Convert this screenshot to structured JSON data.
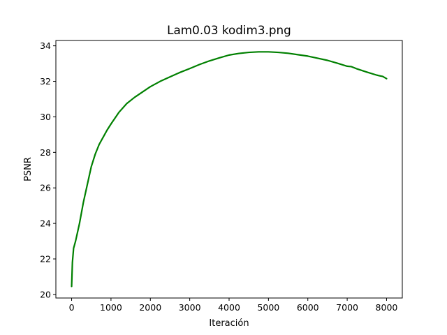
{
  "chart_data": {
    "type": "line",
    "title": "Lam0.03 kodim3.png",
    "xlabel": "Iteración",
    "ylabel": "PSNR",
    "xlim": [
      -400,
      8400
    ],
    "ylim": [
      19.8,
      34.3
    ],
    "x_ticks": [
      0,
      1000,
      2000,
      3000,
      4000,
      5000,
      6000,
      7000,
      8000
    ],
    "y_ticks": [
      20,
      22,
      24,
      26,
      28,
      30,
      32,
      34
    ],
    "grid": false,
    "series": [
      {
        "color": "#008000",
        "x": [
          0,
          20,
          50,
          100,
          200,
          300,
          400,
          500,
          600,
          700,
          800,
          900,
          1000,
          1200,
          1400,
          1600,
          1800,
          2000,
          2250,
          2500,
          2750,
          3000,
          3250,
          3500,
          3750,
          4000,
          4250,
          4500,
          4750,
          5000,
          5250,
          5500,
          5750,
          6000,
          6250,
          6500,
          6750,
          7000,
          7100,
          7250,
          7500,
          7750,
          7850,
          7900,
          8000
        ],
        "y": [
          20.45,
          21.8,
          22.6,
          23.0,
          24.0,
          25.2,
          26.2,
          27.2,
          27.9,
          28.45,
          28.85,
          29.25,
          29.6,
          30.25,
          30.75,
          31.1,
          31.4,
          31.7,
          32.0,
          32.25,
          32.5,
          32.72,
          32.95,
          33.15,
          33.32,
          33.48,
          33.57,
          33.63,
          33.66,
          33.66,
          33.63,
          33.58,
          33.5,
          33.42,
          33.3,
          33.18,
          33.02,
          32.85,
          32.83,
          32.7,
          32.52,
          32.35,
          32.3,
          32.28,
          32.15
        ]
      }
    ]
  }
}
